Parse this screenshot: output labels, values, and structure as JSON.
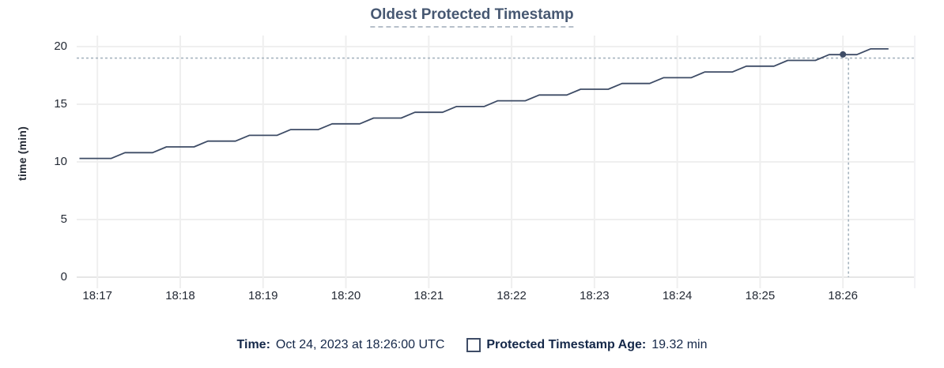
{
  "colors": {
    "title": "#475872",
    "axis_label": "#242a35",
    "grid": "#efefef",
    "grid_zero": "#e6e6e6",
    "series": "#3e4c66",
    "crosshair": "#a6b4bf",
    "tooltip_text": "#152849",
    "title_underline": "#b6c0ca"
  },
  "header": {
    "title": "Oldest Protected Timestamp"
  },
  "tooltip": {
    "time_label": "Time:",
    "time_value": "Oct 24, 2023 at 18:26:00 UTC",
    "series_label": "Protected Timestamp Age:",
    "series_value": "19.32 min",
    "swatch_icon": "empty-square-swatch"
  },
  "chart_data": {
    "type": "line",
    "title": "Oldest Protected Timestamp",
    "xlabel": "",
    "ylabel": "time (min)",
    "ylim": [
      0,
      20
    ],
    "y_ticks": [
      0,
      5,
      10,
      15,
      20
    ],
    "x_ticks": [
      "18:17",
      "18:18",
      "18:19",
      "18:20",
      "18:21",
      "18:22",
      "18:23",
      "18:24",
      "18:25",
      "18:26"
    ],
    "x_domain": [
      "18:16:45",
      "18:26:52"
    ],
    "grid": "on",
    "legend_position": "bottom",
    "series": [
      {
        "name": "Protected Timestamp Age",
        "unit": "min",
        "points": [
          [
            "18:16:47",
            10.3
          ],
          [
            "18:17:10",
            10.3
          ],
          [
            "18:17:20",
            10.8
          ],
          [
            "18:17:40",
            10.8
          ],
          [
            "18:17:50",
            11.3
          ],
          [
            "18:18:10",
            11.3
          ],
          [
            "18:18:20",
            11.8
          ],
          [
            "18:18:40",
            11.8
          ],
          [
            "18:18:50",
            12.3
          ],
          [
            "18:19:10",
            12.3
          ],
          [
            "18:19:20",
            12.8
          ],
          [
            "18:19:40",
            12.8
          ],
          [
            "18:19:50",
            13.3
          ],
          [
            "18:20:10",
            13.3
          ],
          [
            "18:20:20",
            13.8
          ],
          [
            "18:20:40",
            13.8
          ],
          [
            "18:20:50",
            14.3
          ],
          [
            "18:21:10",
            14.3
          ],
          [
            "18:21:20",
            14.8
          ],
          [
            "18:21:40",
            14.8
          ],
          [
            "18:21:50",
            15.3
          ],
          [
            "18:22:10",
            15.3
          ],
          [
            "18:22:20",
            15.8
          ],
          [
            "18:22:40",
            15.8
          ],
          [
            "18:22:50",
            16.3
          ],
          [
            "18:23:10",
            16.3
          ],
          [
            "18:23:20",
            16.8
          ],
          [
            "18:23:40",
            16.8
          ],
          [
            "18:23:50",
            17.3
          ],
          [
            "18:24:10",
            17.3
          ],
          [
            "18:24:20",
            17.8
          ],
          [
            "18:24:40",
            17.8
          ],
          [
            "18:24:50",
            18.3
          ],
          [
            "18:25:10",
            18.3
          ],
          [
            "18:25:20",
            18.8
          ],
          [
            "18:25:40",
            18.8
          ],
          [
            "18:25:50",
            19.3
          ],
          [
            "18:26:10",
            19.3
          ],
          [
            "18:26:20",
            19.8
          ],
          [
            "18:26:33",
            19.8
          ]
        ]
      }
    ],
    "hover": {
      "point_time": "18:26:00",
      "point_value": 19.32,
      "crosshair_time": "18:26:04",
      "crosshair_value": 19.0
    }
  }
}
